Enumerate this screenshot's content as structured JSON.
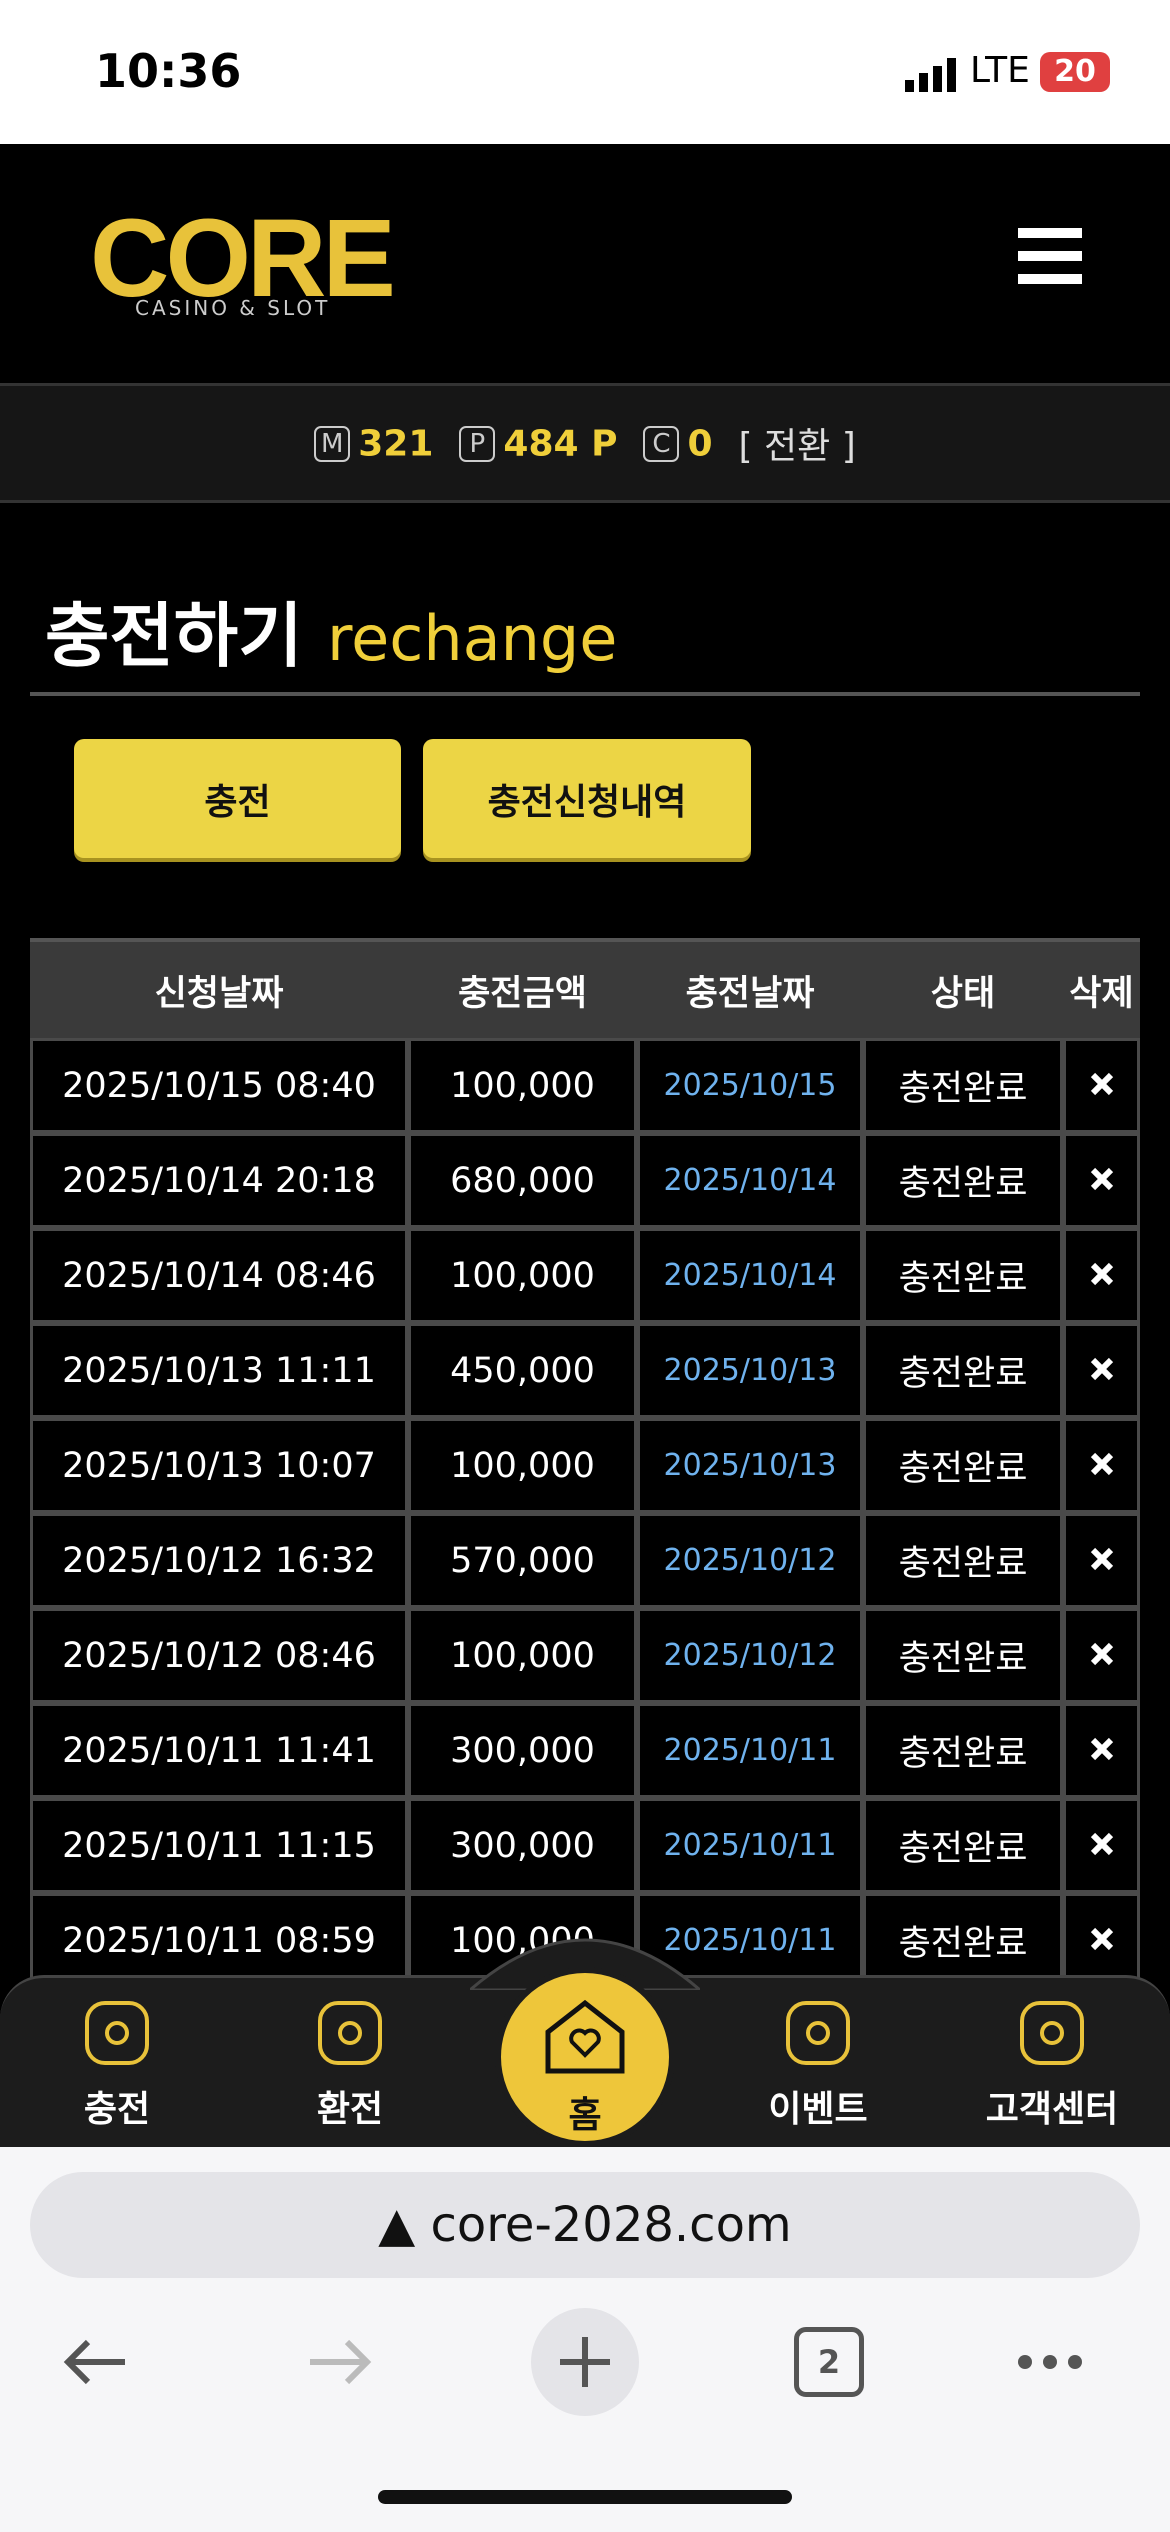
{
  "status_bar": {
    "time": "10:36",
    "network": "LTE",
    "battery": "20"
  },
  "header": {
    "logo": "CORE",
    "logo_sub": "CASINO & SLOT"
  },
  "balance": [
    {
      "icon": "M",
      "value": "321"
    },
    {
      "icon": "P",
      "value": "484 P"
    },
    {
      "icon": "C",
      "value": "0"
    }
  ],
  "convert": "[ 전환 ]",
  "page_title": {
    "ko": "충전하기",
    "en": "rechange"
  },
  "tabs": [
    "충전",
    "충전신청내역"
  ],
  "table": {
    "headers": [
      "신청날짜",
      "충전금액",
      "충전날짜",
      "상태",
      "삭제"
    ],
    "rows": [
      [
        "2025/10/15 08:40",
        "100,000",
        "2025/10/15",
        "충전완료"
      ],
      [
        "2025/10/14 20:18",
        "680,000",
        "2025/10/14",
        "충전완료"
      ],
      [
        "2025/10/14 08:46",
        "100,000",
        "2025/10/14",
        "충전완료"
      ],
      [
        "2025/10/13 11:11",
        "450,000",
        "2025/10/13",
        "충전완료"
      ],
      [
        "2025/10/13 10:07",
        "100,000",
        "2025/10/13",
        "충전완료"
      ],
      [
        "2025/10/12 16:32",
        "570,000",
        "2025/10/12",
        "충전완료"
      ],
      [
        "2025/10/12 08:46",
        "100,000",
        "2025/10/12",
        "충전완료"
      ],
      [
        "2025/10/11 11:41",
        "300,000",
        "2025/10/11",
        "충전완료"
      ],
      [
        "2025/10/11 11:15",
        "300,000",
        "2025/10/11",
        "충전완료"
      ],
      [
        "2025/10/11 08:59",
        "100,000",
        "2025/10/11",
        "충전완료"
      ]
    ]
  },
  "bottom_nav": [
    "충전",
    "환전",
    "홈",
    "이벤트",
    "고객센터"
  ],
  "browser": {
    "url": "core-2028.com",
    "tab_count": "2"
  }
}
